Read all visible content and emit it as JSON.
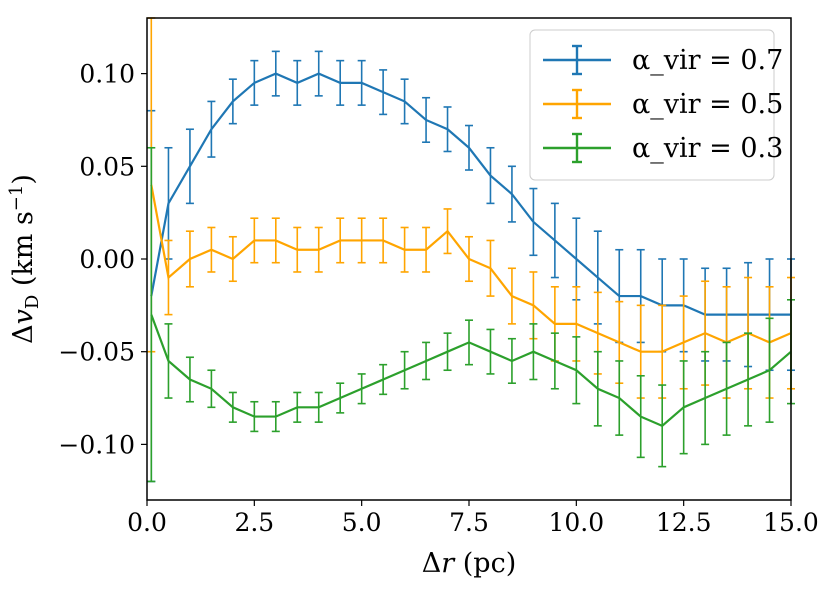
{
  "chart_data": {
    "type": "line",
    "xlabel": "Δr (pc)",
    "ylabel": "Δv_D (km s^-1)",
    "xlim": [
      0,
      15
    ],
    "ylim": [
      -0.13,
      0.13
    ],
    "xticks": [
      "0.0",
      "2.5",
      "5.0",
      "7.5",
      "10.0",
      "12.5",
      "15.0"
    ],
    "yticks": [
      "0.10",
      "0.05",
      "0.00",
      "−0.05",
      "−0.10"
    ],
    "legend_position": "top-right",
    "grid": false,
    "series": [
      {
        "name": "α_vir = 0.7",
        "color": "#1f77b4",
        "x": [
          0.1,
          0.5,
          1.0,
          1.5,
          2.0,
          2.5,
          3.0,
          3.5,
          4.0,
          4.5,
          5.0,
          5.5,
          6.0,
          6.5,
          7.0,
          7.5,
          8.0,
          8.5,
          9.0,
          9.5,
          10.0,
          10.5,
          11.0,
          11.5,
          12.0,
          12.5,
          13.0,
          13.5,
          14.0,
          14.5,
          15.0
        ],
        "y": [
          -0.02,
          0.03,
          0.05,
          0.07,
          0.085,
          0.095,
          0.1,
          0.095,
          0.1,
          0.095,
          0.095,
          0.09,
          0.085,
          0.075,
          0.07,
          0.06,
          0.045,
          0.035,
          0.02,
          0.01,
          0.0,
          -0.01,
          -0.02,
          -0.02,
          -0.025,
          -0.025,
          -0.03,
          -0.03,
          -0.03,
          -0.03,
          -0.03
        ],
        "err": [
          0.1,
          0.03,
          0.02,
          0.015,
          0.012,
          0.012,
          0.012,
          0.012,
          0.012,
          0.012,
          0.012,
          0.012,
          0.012,
          0.012,
          0.012,
          0.012,
          0.015,
          0.015,
          0.018,
          0.02,
          0.022,
          0.025,
          0.025,
          0.025,
          0.025,
          0.025,
          0.025,
          0.025,
          0.028,
          0.03,
          0.03
        ]
      },
      {
        "name": "α_vir = 0.5",
        "color": "#ffa500",
        "x": [
          0.1,
          0.5,
          1.0,
          1.5,
          2.0,
          2.5,
          3.0,
          3.5,
          4.0,
          4.5,
          5.0,
          5.5,
          6.0,
          6.5,
          7.0,
          7.5,
          8.0,
          8.5,
          9.0,
          9.5,
          10.0,
          10.5,
          11.0,
          11.5,
          12.0,
          12.5,
          13.0,
          13.5,
          14.0,
          14.5,
          15.0
        ],
        "y": [
          0.04,
          -0.01,
          0.0,
          0.005,
          0.0,
          0.01,
          0.01,
          0.005,
          0.005,
          0.01,
          0.01,
          0.01,
          0.005,
          0.005,
          0.015,
          0.0,
          -0.005,
          -0.02,
          -0.025,
          -0.035,
          -0.035,
          -0.04,
          -0.045,
          -0.05,
          -0.05,
          -0.045,
          -0.04,
          -0.045,
          -0.04,
          -0.045,
          -0.04
        ],
        "err": [
          0.09,
          0.02,
          0.015,
          0.012,
          0.012,
          0.012,
          0.012,
          0.012,
          0.012,
          0.012,
          0.012,
          0.012,
          0.012,
          0.012,
          0.012,
          0.012,
          0.015,
          0.015,
          0.018,
          0.02,
          0.02,
          0.022,
          0.022,
          0.025,
          0.025,
          0.025,
          0.028,
          0.03,
          0.03,
          0.03,
          0.03
        ]
      },
      {
        "name": "α_vir = 0.3",
        "color": "#2ca02c",
        "x": [
          0.1,
          0.5,
          1.0,
          1.5,
          2.0,
          2.5,
          3.0,
          3.5,
          4.0,
          4.5,
          5.0,
          5.5,
          6.0,
          6.5,
          7.0,
          7.5,
          8.0,
          8.5,
          9.0,
          9.5,
          10.0,
          10.5,
          11.0,
          11.5,
          12.0,
          12.5,
          13.0,
          13.5,
          14.0,
          14.5,
          15.0
        ],
        "y": [
          -0.03,
          -0.055,
          -0.065,
          -0.07,
          -0.08,
          -0.085,
          -0.085,
          -0.08,
          -0.08,
          -0.075,
          -0.07,
          -0.065,
          -0.06,
          -0.055,
          -0.05,
          -0.045,
          -0.05,
          -0.055,
          -0.05,
          -0.055,
          -0.06,
          -0.07,
          -0.075,
          -0.085,
          -0.09,
          -0.08,
          -0.075,
          -0.07,
          -0.065,
          -0.06,
          -0.05
        ],
        "err": [
          0.09,
          0.02,
          0.012,
          0.01,
          0.008,
          0.008,
          0.008,
          0.008,
          0.008,
          0.008,
          0.008,
          0.008,
          0.01,
          0.01,
          0.01,
          0.012,
          0.012,
          0.012,
          0.015,
          0.015,
          0.018,
          0.02,
          0.02,
          0.022,
          0.022,
          0.025,
          0.025,
          0.025,
          0.025,
          0.028,
          0.028
        ]
      }
    ]
  }
}
